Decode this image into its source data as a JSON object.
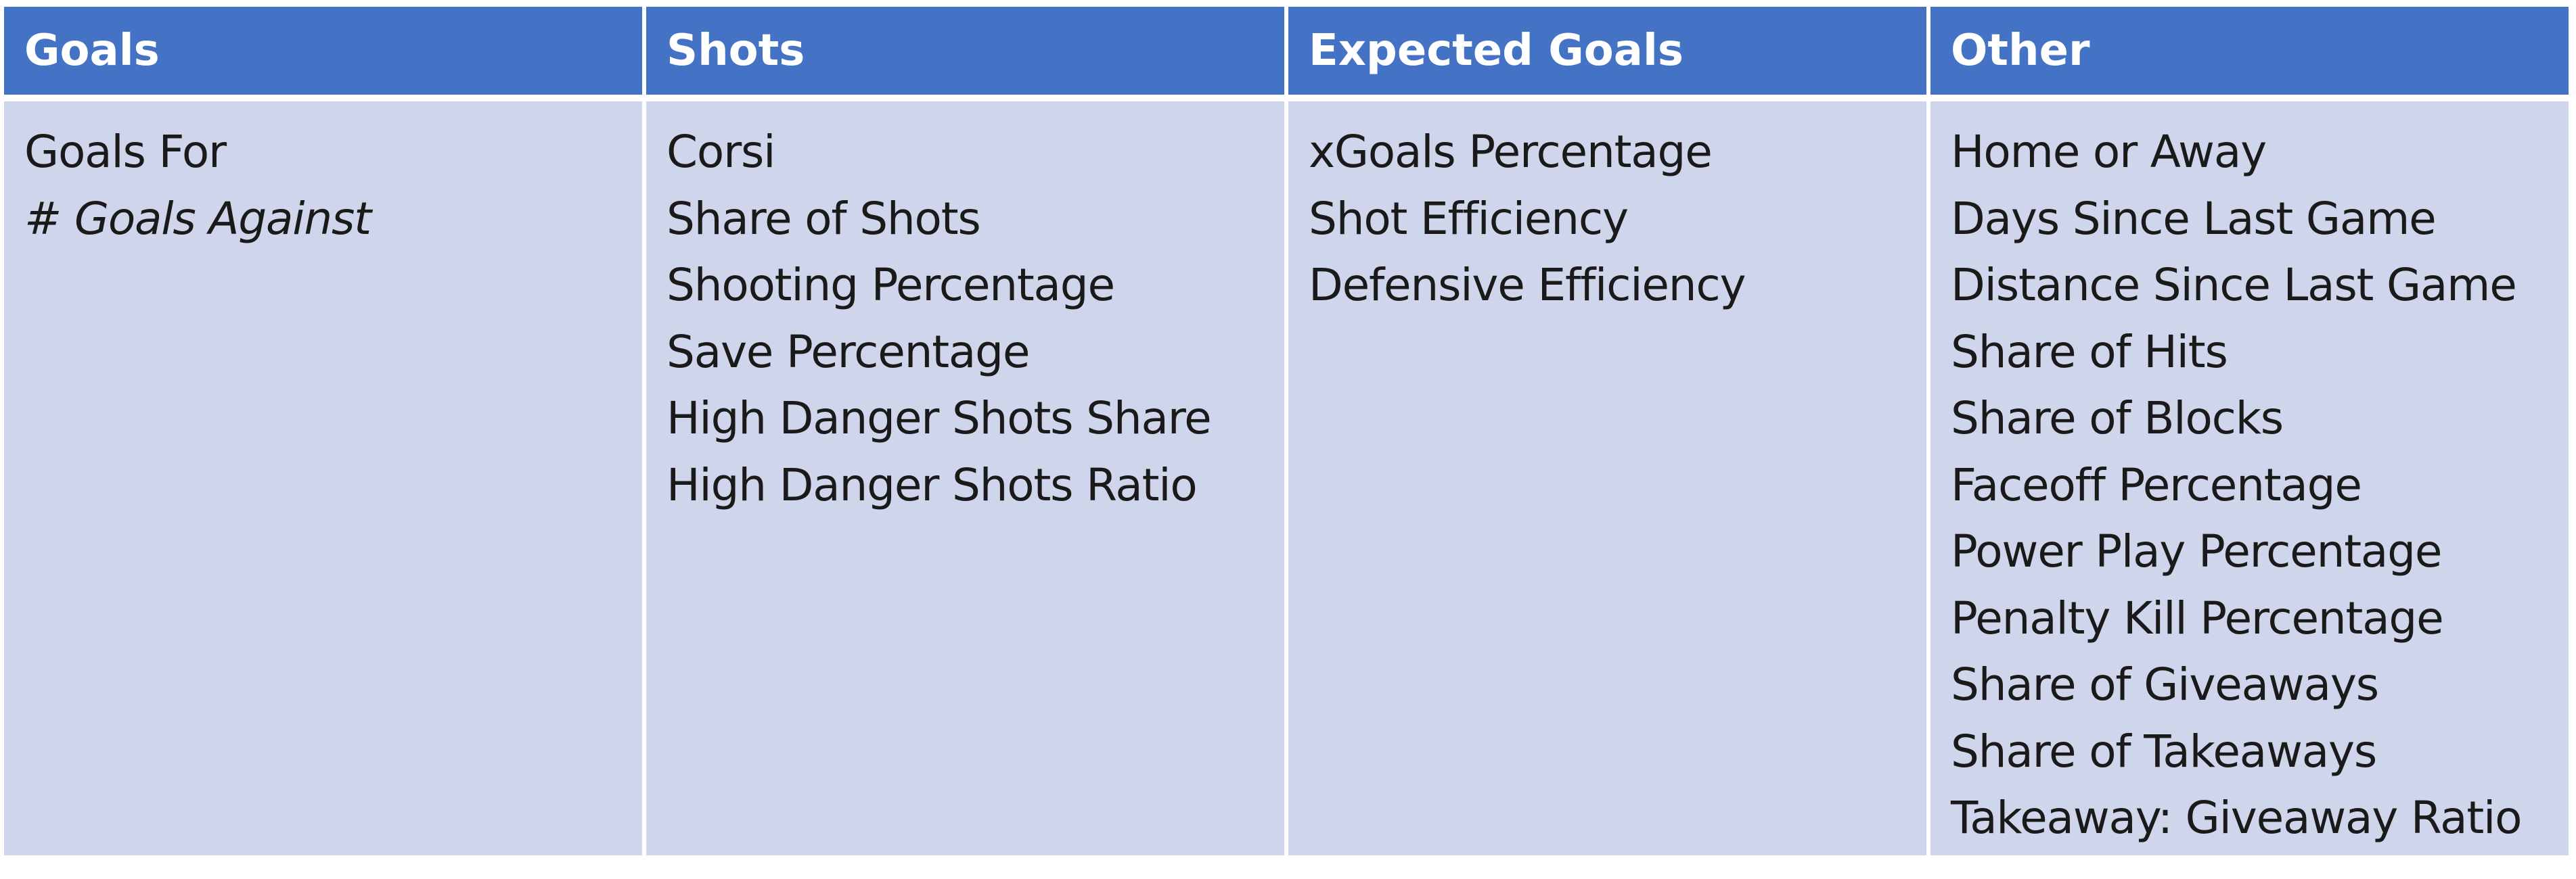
{
  "columns": [
    {
      "header": "Goals",
      "items": [
        {
          "text": "Goals For",
          "italic": false
        },
        {
          "text": "# Goals Against",
          "italic": true
        }
      ]
    },
    {
      "header": "Shots",
      "items": [
        {
          "text": "Corsi",
          "italic": false
        },
        {
          "text": "Share of Shots",
          "italic": false
        },
        {
          "text": "Shooting Percentage",
          "italic": false
        },
        {
          "text": "Save Percentage",
          "italic": false
        },
        {
          "text": "High Danger Shots Share",
          "italic": false
        },
        {
          "text": "High Danger Shots Ratio",
          "italic": false
        }
      ]
    },
    {
      "header": "Expected Goals",
      "items": [
        {
          "text": "xGoals Percentage",
          "italic": false
        },
        {
          "text": "Shot Efficiency",
          "italic": false
        },
        {
          "text": "Defensive Efficiency",
          "italic": false
        }
      ]
    },
    {
      "header": "Other",
      "items": [
        {
          "text": "Home or Away",
          "italic": false
        },
        {
          "text": "Days Since Last Game",
          "italic": false
        },
        {
          "text": "Distance Since Last Game",
          "italic": false
        },
        {
          "text": "Share of Hits",
          "italic": false
        },
        {
          "text": "Share of Blocks",
          "italic": false
        },
        {
          "text": "Faceoff Percentage",
          "italic": false
        },
        {
          "text": "Power Play Percentage",
          "italic": false
        },
        {
          "text": "Penalty Kill Percentage",
          "italic": false
        },
        {
          "text": "Share of Giveaways",
          "italic": false
        },
        {
          "text": "Share of Takeaways",
          "italic": false
        },
        {
          "text": "Takeaway: Giveaway Ratio",
          "italic": false
        }
      ]
    }
  ],
  "colors": {
    "header_bg": "#4472c4",
    "header_text": "#ffffff",
    "body_bg": "#cfd5ea",
    "body_text": "#1a1a1a"
  }
}
